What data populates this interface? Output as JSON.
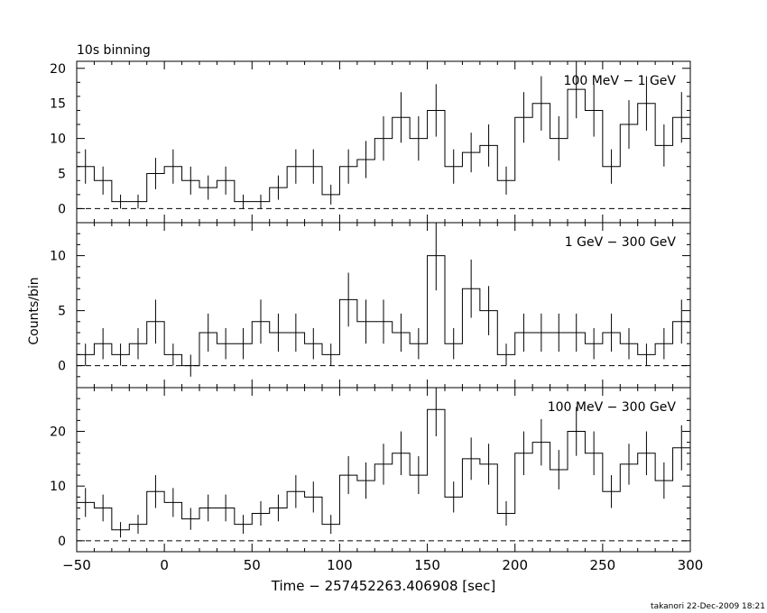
{
  "header": {
    "top_label": "10s binning",
    "ylabel": "Counts/bin",
    "xlabel": "Time − 257452263.406908 [sec]",
    "footer": "takanori 22-Dec-2009 18:21"
  },
  "chart_data": [
    {
      "type": "step",
      "panel_label": "100 MeV − 1 GeV",
      "bin_start": -50,
      "bin_width": 10,
      "values": [
        6,
        4,
        1,
        1,
        5,
        6,
        4,
        3,
        4,
        1,
        1,
        3,
        6,
        6,
        2,
        6,
        7,
        10,
        13,
        10,
        14,
        6,
        8,
        9,
        4,
        13,
        15,
        10,
        17,
        14,
        6,
        12,
        15,
        9,
        13
      ],
      "ylim": [
        -2,
        21
      ],
      "yticks": [
        0,
        5,
        10,
        15,
        20
      ]
    },
    {
      "type": "step",
      "panel_label": "1 GeV − 300 GeV",
      "bin_start": -50,
      "bin_width": 10,
      "values": [
        1,
        2,
        1,
        2,
        4,
        1,
        0,
        3,
        2,
        2,
        4,
        3,
        3,
        2,
        1,
        6,
        4,
        4,
        3,
        2,
        10,
        2,
        7,
        5,
        1,
        3,
        3,
        3,
        3,
        2,
        3,
        2,
        1,
        2,
        4
      ],
      "ylim": [
        -2,
        13
      ],
      "yticks": [
        0,
        5,
        10
      ]
    },
    {
      "type": "step",
      "panel_label": "100 MeV − 300 GeV",
      "bin_start": -50,
      "bin_width": 10,
      "values": [
        7,
        6,
        2,
        3,
        9,
        7,
        4,
        6,
        6,
        3,
        5,
        6,
        9,
        8,
        3,
        12,
        11,
        14,
        16,
        12,
        24,
        8,
        15,
        14,
        5,
        16,
        18,
        13,
        20,
        16,
        9,
        14,
        16,
        11,
        17
      ],
      "ylim": [
        -2,
        28
      ],
      "yticks": [
        0,
        10,
        20
      ]
    }
  ],
  "x_axis": {
    "xlim": [
      -50,
      300
    ],
    "ticks": [
      -50,
      0,
      50,
      100,
      150,
      200,
      250,
      300
    ],
    "tick_labels": [
      "−50",
      "0",
      "50",
      "100",
      "150",
      "200",
      "250",
      "300"
    ]
  }
}
